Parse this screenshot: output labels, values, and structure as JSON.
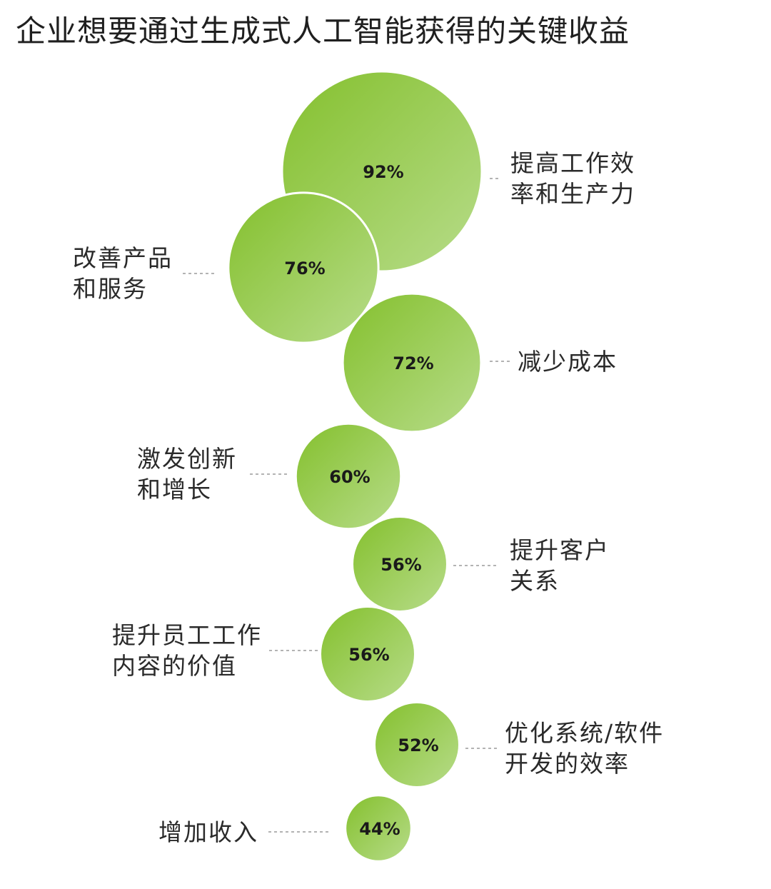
{
  "chart_data": {
    "type": "bubble",
    "title": "企业想要通过生成式人工智能获得的关键收益",
    "unit": "%",
    "items": [
      {
        "category": [
          "提高工作效",
          "率和生产力"
        ],
        "value": 92,
        "value_label": "92%"
      },
      {
        "category": [
          "改善产品",
          "和服务"
        ],
        "value": 76,
        "value_label": "76%"
      },
      {
        "category": [
          "减少成本"
        ],
        "value": 72,
        "value_label": "72%"
      },
      {
        "category": [
          "激发创新",
          "和增长"
        ],
        "value": 60,
        "value_label": "60%"
      },
      {
        "category": [
          "提升客户",
          "关系"
        ],
        "value": 56,
        "value_label": "56%"
      },
      {
        "category": [
          "提升员工工作",
          "内容的价值"
        ],
        "value": 56,
        "value_label": "56%"
      },
      {
        "category": [
          "优化系统/软件",
          "开发的效率"
        ],
        "value": 52,
        "value_label": "52%"
      },
      {
        "category": [
          "增加收入"
        ],
        "value": 44,
        "value_label": "44%"
      }
    ],
    "colors": {
      "bubble_dark": "#84c02d",
      "bubble_light": "#b7dc8a",
      "connector": "#9a9a9a",
      "text": "#1a1a1a"
    }
  }
}
